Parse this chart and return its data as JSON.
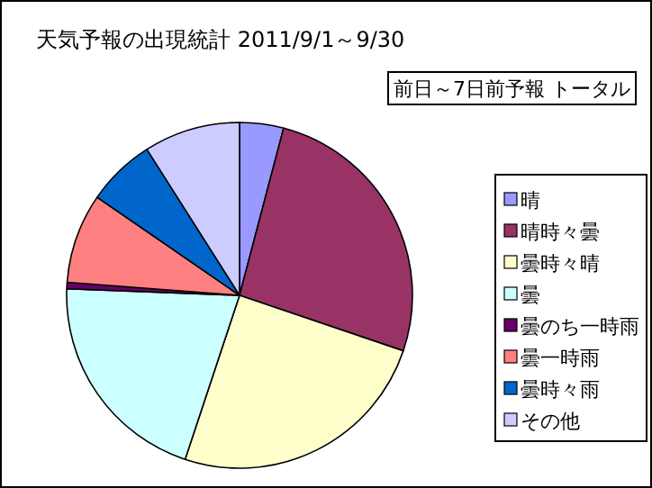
{
  "chart_data": {
    "type": "pie",
    "title": "天気予報の出現統計 2011/9/1～9/30",
    "subtitle": "前日～7日前予報 トータル",
    "categories": [
      "晴",
      "晴時々曇",
      "曇時々晴",
      "曇",
      "曇のち一時雨",
      "曇一時雨",
      "曇時々雨",
      "その他"
    ],
    "values": [
      4.1,
      26.1,
      24.9,
      20.5,
      0.6,
      8.4,
      6.4,
      9.0
    ],
    "colors": [
      "#9999ff",
      "#993366",
      "#ffffcc",
      "#ccffff",
      "#660066",
      "#ff8080",
      "#0066cc",
      "#ccccff"
    ],
    "legend": "right"
  }
}
